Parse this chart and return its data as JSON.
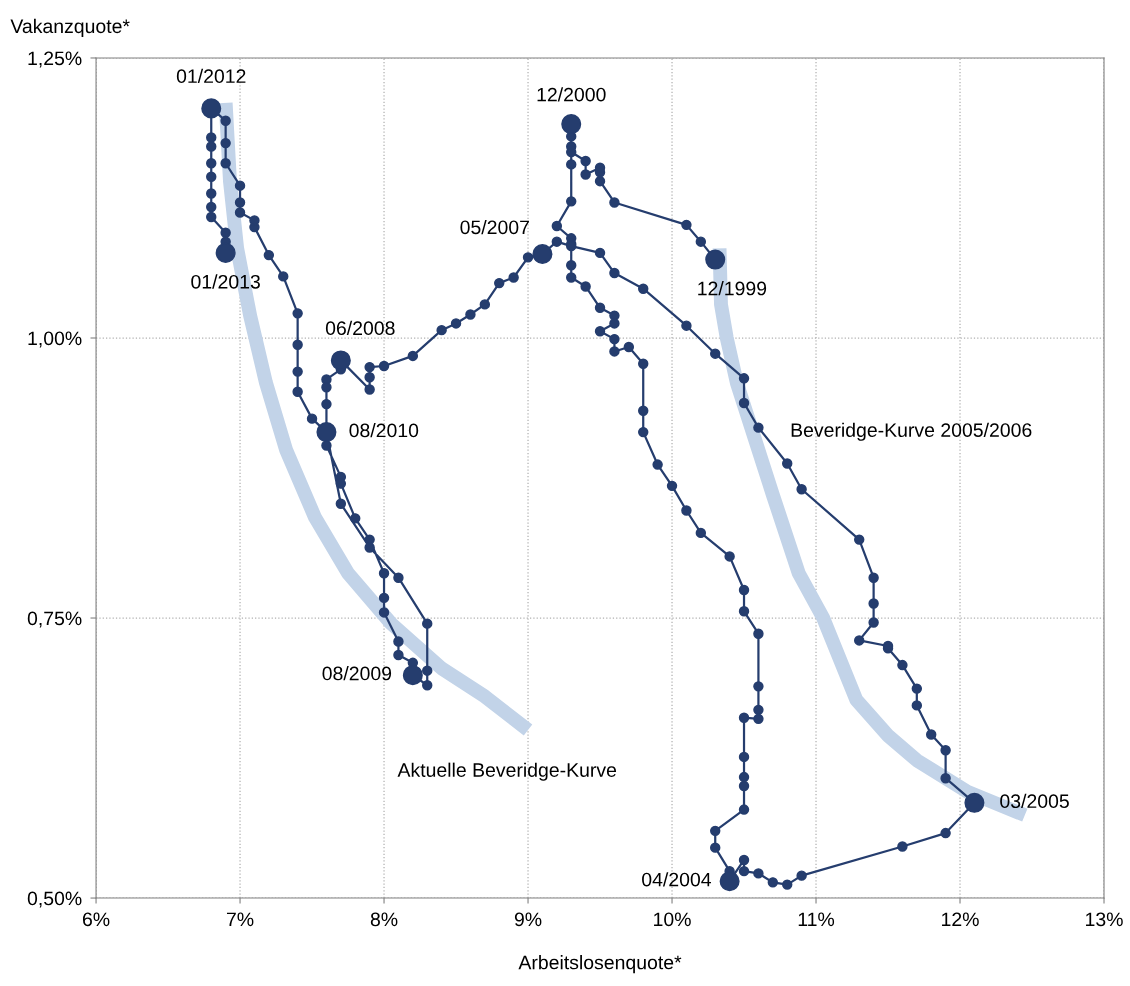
{
  "chart_data": {
    "type": "line",
    "xlabel": "Arbeitslosenquote*",
    "ylabel": "Vakanzquote*",
    "xlim": [
      6,
      13
    ],
    "ylim": [
      0.5,
      1.25
    ],
    "xticks": [
      {
        "value": 6,
        "label": "6%"
      },
      {
        "value": 7,
        "label": "7%"
      },
      {
        "value": 8,
        "label": "8%"
      },
      {
        "value": 9,
        "label": "9%"
      },
      {
        "value": 10,
        "label": "10%"
      },
      {
        "value": 11,
        "label": "11%"
      },
      {
        "value": 12,
        "label": "12%"
      },
      {
        "value": 13,
        "label": "13%"
      }
    ],
    "yticks": [
      {
        "value": 0.5,
        "label": "0,50%"
      },
      {
        "value": 0.75,
        "label": "0,75%"
      },
      {
        "value": 1.0,
        "label": "1,00%"
      },
      {
        "value": 1.25,
        "label": "1,25%"
      }
    ],
    "grid": true,
    "legend": false,
    "series": [
      {
        "name": "Aktuelle Beveridge-Kurve",
        "type": "line",
        "color": "#c2d3e8",
        "marker": "none",
        "x": [
          6.9,
          6.93,
          6.98,
          7.07,
          7.18,
          7.32,
          7.52,
          7.75,
          8.05,
          8.4,
          8.7,
          9.0
        ],
        "values": [
          1.21,
          1.14,
          1.08,
          1.02,
          0.96,
          0.9,
          0.84,
          0.79,
          0.745,
          0.705,
          0.68,
          0.65
        ]
      },
      {
        "name": "Beveridge-Kurve 2005/2006",
        "type": "line",
        "color": "#c2d3e8",
        "marker": "none",
        "x": [
          10.33,
          10.34,
          10.38,
          10.45,
          10.55,
          10.7,
          10.88,
          11.05,
          11.28,
          11.5,
          11.7,
          12.05,
          12.45
        ],
        "values": [
          1.08,
          1.03,
          1.0,
          0.96,
          0.92,
          0.86,
          0.79,
          0.75,
          0.677,
          0.645,
          0.623,
          0.595,
          0.574
        ]
      },
      {
        "color": "#253d6e",
        "marker": "circle",
        "x": [
          10.3,
          10.2,
          10.1,
          9.6,
          9.5,
          9.5,
          9.5,
          9.4,
          9.4,
          9.3,
          9.3,
          9.3,
          9.3,
          9.3,
          9.3,
          9.2,
          9.3,
          9.3,
          9.3,
          9.3,
          9.4,
          9.5,
          9.6,
          9.6,
          9.5,
          9.6,
          9.6,
          9.7,
          9.8,
          9.8,
          9.8,
          9.9,
          10.0,
          10.1,
          10.2,
          10.4,
          10.5,
          10.5,
          10.6,
          10.6,
          10.6,
          10.6,
          10.5,
          10.5,
          10.5,
          10.5,
          10.5,
          10.3,
          10.3,
          10.4,
          10.4,
          10.5,
          10.5,
          10.6,
          10.7,
          10.8,
          10.9,
          11.6,
          11.9,
          12.1,
          11.9,
          11.9,
          11.8,
          11.7,
          11.7,
          11.6,
          11.5,
          11.5,
          11.3,
          11.4,
          11.4,
          11.4,
          11.3,
          10.9,
          10.8,
          10.6,
          10.5,
          10.5,
          10.3,
          10.1,
          9.8,
          9.6,
          9.5,
          9.3,
          9.2,
          9.1,
          9.0,
          8.9,
          8.8,
          8.7,
          8.6,
          8.5,
          8.4,
          8.2,
          8.0,
          7.9,
          7.9,
          7.9,
          7.7,
          7.7,
          7.6,
          7.6,
          7.6,
          7.6,
          7.7,
          7.7,
          7.8,
          7.9,
          8.0,
          8.0,
          8.0,
          8.1,
          8.1,
          8.2,
          8.2,
          8.3,
          8.3,
          8.3,
          8.1,
          7.9,
          7.7,
          7.6,
          7.5,
          7.4,
          7.4,
          7.4,
          7.4,
          7.3,
          7.2,
          7.1,
          7.1,
          7.0,
          7.0,
          7.0,
          6.9,
          6.9,
          6.9,
          6.8,
          6.8,
          6.8,
          6.8,
          6.8,
          6.8,
          6.8,
          6.8,
          6.9,
          6.9,
          6.9
        ],
        "values": [
          1.07,
          1.086,
          1.101,
          1.121,
          1.14,
          1.148,
          1.152,
          1.146,
          1.158,
          1.166,
          1.171,
          1.18,
          1.191,
          1.155,
          1.122,
          1.1,
          1.089,
          1.084,
          1.065,
          1.054,
          1.046,
          1.027,
          1.02,
          1.013,
          1.006,
          0.999,
          0.988,
          0.992,
          0.977,
          0.935,
          0.916,
          0.887,
          0.868,
          0.846,
          0.826,
          0.805,
          0.775,
          0.756,
          0.736,
          0.689,
          0.668,
          0.66,
          0.661,
          0.626,
          0.608,
          0.6,
          0.579,
          0.56,
          0.545,
          0.524,
          0.515,
          0.534,
          0.524,
          0.522,
          0.514,
          0.512,
          0.52,
          0.546,
          0.558,
          0.585,
          0.607,
          0.632,
          0.646,
          0.672,
          0.687,
          0.708,
          0.723,
          0.725,
          0.73,
          0.746,
          0.763,
          0.786,
          0.82,
          0.865,
          0.888,
          0.92,
          0.942,
          0.964,
          0.986,
          1.011,
          1.044,
          1.058,
          1.076,
          1.082,
          1.086,
          1.075,
          1.072,
          1.054,
          1.049,
          1.03,
          1.021,
          1.013,
          1.007,
          0.984,
          0.975,
          0.974,
          0.965,
          0.954,
          0.98,
          0.972,
          0.963,
          0.956,
          0.941,
          0.904,
          0.876,
          0.87,
          0.839,
          0.82,
          0.79,
          0.768,
          0.755,
          0.729,
          0.717,
          0.71,
          0.699,
          0.69,
          0.703,
          0.745,
          0.786,
          0.813,
          0.852,
          0.916,
          0.928,
          0.952,
          0.97,
          0.994,
          1.022,
          1.055,
          1.074,
          1.099,
          1.105,
          1.112,
          1.121,
          1.136,
          1.156,
          1.174,
          1.194,
          1.205,
          1.179,
          1.171,
          1.156,
          1.144,
          1.129,
          1.117,
          1.108,
          1.094,
          1.086,
          1.076
        ]
      },
      {
        "type": "scatter",
        "color": "#253d6e",
        "marker": "circle",
        "x": [
          6.8,
          6.9,
          9.3,
          9.1,
          10.3,
          7.7,
          7.6,
          8.2,
          10.4,
          12.1
        ],
        "values": [
          1.205,
          1.076,
          1.191,
          1.075,
          1.07,
          0.98,
          0.916,
          0.699,
          0.515,
          0.585
        ]
      }
    ],
    "annotations": [
      {
        "text": "01/2012",
        "x": 6.8,
        "y": 1.205
      },
      {
        "text": "01/2013",
        "x": 6.9,
        "y": 1.076
      },
      {
        "text": "12/2000",
        "x": 9.3,
        "y": 1.191
      },
      {
        "text": "05/2007",
        "x": 9.1,
        "y": 1.075
      },
      {
        "text": "12/1999",
        "x": 10.3,
        "y": 1.07
      },
      {
        "text": "06/2008",
        "x": 7.7,
        "y": 0.98
      },
      {
        "text": "08/2010",
        "x": 7.6,
        "y": 0.916
      },
      {
        "text": "08/2009",
        "x": 8.2,
        "y": 0.699
      },
      {
        "text": "04/2004",
        "x": 10.4,
        "y": 0.515
      },
      {
        "text": "03/2005",
        "x": 12.1,
        "y": 0.585
      }
    ]
  }
}
